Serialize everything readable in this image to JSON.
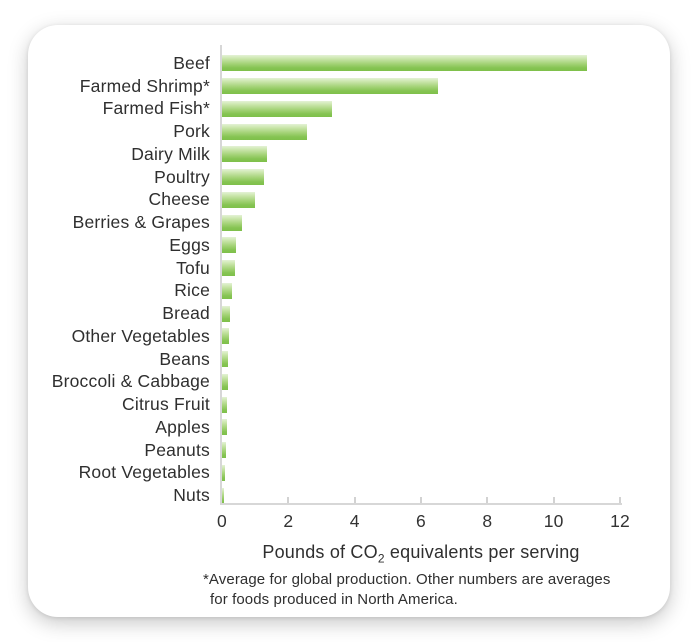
{
  "chart_data": {
    "type": "bar",
    "orientation": "horizontal",
    "categories": [
      "Beef",
      "Farmed Shrimp*",
      "Farmed Fish*",
      "Pork",
      "Dairy Milk",
      "Poultry",
      "Cheese",
      "Berries & Grapes",
      "Eggs",
      "Tofu",
      "Rice",
      "Bread",
      "Other Vegetables",
      "Beans",
      "Broccoli & Cabbage",
      "Citrus Fruit",
      "Apples",
      "Peanuts",
      "Root Vegetables",
      "Nuts"
    ],
    "values": [
      11.0,
      6.5,
      3.3,
      2.55,
      1.35,
      1.25,
      1.0,
      0.6,
      0.42,
      0.4,
      0.3,
      0.25,
      0.22,
      0.19,
      0.18,
      0.16,
      0.15,
      0.13,
      0.1,
      0.06
    ],
    "xlabel": "Pounds of CO2 equivalents per serving",
    "xlabel_parts": {
      "pre": "Pounds of CO",
      "sub": "2",
      "post": " equivalents per serving"
    },
    "xticks": [
      0,
      2,
      4,
      6,
      8,
      10,
      12
    ],
    "xlim": [
      0,
      12
    ],
    "grid": false,
    "legend": null,
    "footnote_lines": [
      "*Average for global production. Other numbers are averages",
      "for foods produced in North America."
    ],
    "colors": {
      "bar_gradient_top": "#e4f2d6",
      "bar_gradient_bottom": "#7ec04a",
      "axis_line": "#d7d7d7",
      "text": "#2f2f2f",
      "card_background": "#ffffff"
    }
  }
}
